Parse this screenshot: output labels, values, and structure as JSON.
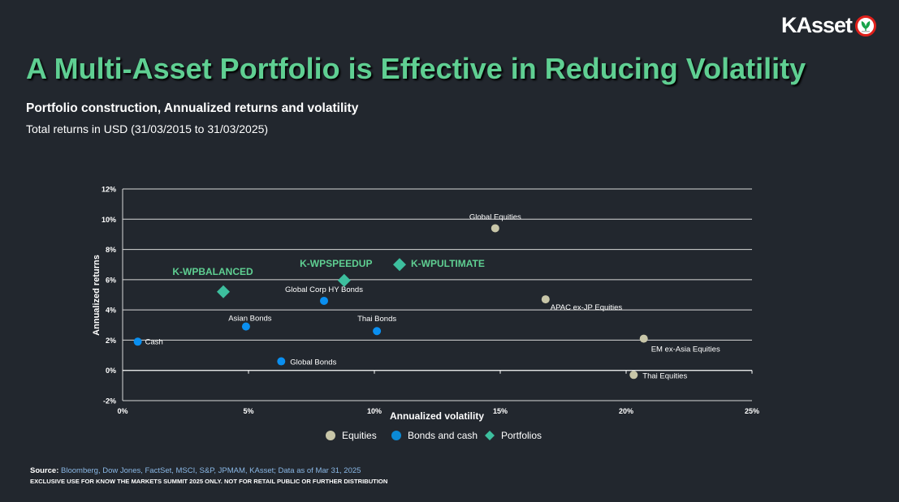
{
  "brand": {
    "name": "KAsset",
    "accent": "#5fcf92",
    "logo_ring": "#e0201b",
    "logo_leaf": "#1aa34a"
  },
  "header": {
    "title": "A Multi-Asset Portfolio is Effective in Reducing Volatility",
    "subtitle": "Portfolio construction, Annualized returns and volatility",
    "subtitle2": "Total returns in USD (31/03/2015 to 31/03/2025)"
  },
  "footer": {
    "source_label": "Source: ",
    "source_text": "Bloomberg, Dow Jones, FactSet, MSCI, S&P, JPMAM, KAsset; Data as of Mar 31, 2025",
    "disclaimer": "EXCLUSIVE USE FOR KNOW THE MARKETS SUMMIT 2025 ONLY. NOT FOR RETAIL PUBLIC OR FURTHER DISTRIBUTION"
  },
  "chart_data": {
    "type": "scatter",
    "title": "Portfolio construction, Annualized returns and volatility",
    "xlabel": "Annualized volatility",
    "ylabel": "Annualized returns",
    "xlim": [
      0,
      25
    ],
    "ylim": [
      -2,
      12
    ],
    "xticks": [
      0,
      5,
      10,
      15,
      20,
      25
    ],
    "yticks": [
      -2,
      0,
      2,
      4,
      6,
      8,
      10,
      12
    ],
    "xtick_labels": [
      "0%",
      "5%",
      "10%",
      "15%",
      "20%",
      "25%"
    ],
    "ytick_labels": [
      "-2%",
      "0%",
      "2%",
      "4%",
      "6%",
      "8%",
      "10%",
      "12%"
    ],
    "grid": "horizontal",
    "legend_position": "bottom-center",
    "series": [
      {
        "name": "Equities",
        "color": "#c8c6a8",
        "marker": "circle",
        "points": [
          {
            "label": "Global Equities",
            "x": 14.8,
            "y": 9.4
          },
          {
            "label": "APAC ex-JP Equities",
            "x": 16.8,
            "y": 4.7
          },
          {
            "label": "EM ex-Asia Equities",
            "x": 20.7,
            "y": 2.1
          },
          {
            "label": "Thai Equities",
            "x": 20.3,
            "y": -0.3
          }
        ]
      },
      {
        "name": "Bonds and cash",
        "color": "#0a8ff0",
        "marker": "circle",
        "points": [
          {
            "label": "Cash",
            "x": 0.6,
            "y": 1.9
          },
          {
            "label": "Asian Bonds",
            "x": 4.9,
            "y": 2.9
          },
          {
            "label": "Global Bonds",
            "x": 6.3,
            "y": 0.6
          },
          {
            "label": "Global Corp HY Bonds",
            "x": 8.0,
            "y": 4.6
          },
          {
            "label": "Thai Bonds",
            "x": 10.1,
            "y": 2.6
          }
        ]
      },
      {
        "name": "Portfolios",
        "color": "#3dbf9e",
        "marker": "diamond",
        "points": [
          {
            "label": "K-WPBALANCED",
            "x": 4.0,
            "y": 5.2
          },
          {
            "label": "K-WPSPEEDUP",
            "x": 8.8,
            "y": 5.95
          },
          {
            "label": "K-WPULTIMATE",
            "x": 11.0,
            "y": 7.0
          }
        ]
      }
    ]
  }
}
